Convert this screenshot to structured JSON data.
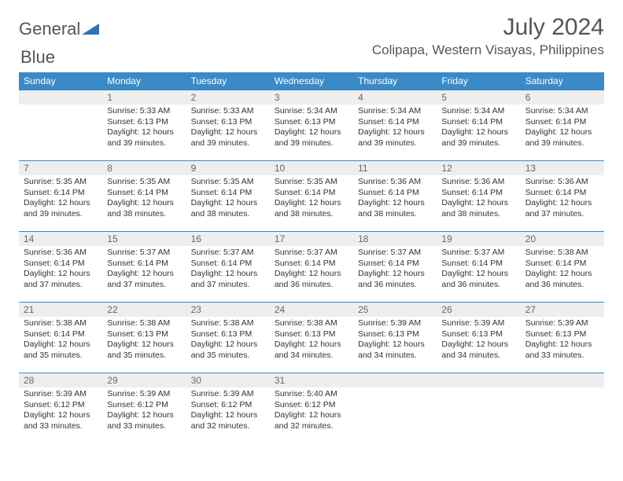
{
  "logo": {
    "text1": "General",
    "text2": "Blue"
  },
  "title": "July 2024",
  "location": "Colipapa, Western Visayas, Philippines",
  "colors": {
    "header_bg": "#3a8ac8",
    "header_text": "#ffffff",
    "daynum_bg": "#eeeeee",
    "row_divider": "#3a8ac8",
    "body_text": "#333333",
    "title_text": "#555555"
  },
  "weekdays": [
    "Sunday",
    "Monday",
    "Tuesday",
    "Wednesday",
    "Thursday",
    "Friday",
    "Saturday"
  ],
  "weeks": [
    [
      {
        "day": "",
        "sunrise": "",
        "sunset": "",
        "daylight": ""
      },
      {
        "day": "1",
        "sunrise": "Sunrise: 5:33 AM",
        "sunset": "Sunset: 6:13 PM",
        "daylight": "Daylight: 12 hours and 39 minutes."
      },
      {
        "day": "2",
        "sunrise": "Sunrise: 5:33 AM",
        "sunset": "Sunset: 6:13 PM",
        "daylight": "Daylight: 12 hours and 39 minutes."
      },
      {
        "day": "3",
        "sunrise": "Sunrise: 5:34 AM",
        "sunset": "Sunset: 6:13 PM",
        "daylight": "Daylight: 12 hours and 39 minutes."
      },
      {
        "day": "4",
        "sunrise": "Sunrise: 5:34 AM",
        "sunset": "Sunset: 6:14 PM",
        "daylight": "Daylight: 12 hours and 39 minutes."
      },
      {
        "day": "5",
        "sunrise": "Sunrise: 5:34 AM",
        "sunset": "Sunset: 6:14 PM",
        "daylight": "Daylight: 12 hours and 39 minutes."
      },
      {
        "day": "6",
        "sunrise": "Sunrise: 5:34 AM",
        "sunset": "Sunset: 6:14 PM",
        "daylight": "Daylight: 12 hours and 39 minutes."
      }
    ],
    [
      {
        "day": "7",
        "sunrise": "Sunrise: 5:35 AM",
        "sunset": "Sunset: 6:14 PM",
        "daylight": "Daylight: 12 hours and 39 minutes."
      },
      {
        "day": "8",
        "sunrise": "Sunrise: 5:35 AM",
        "sunset": "Sunset: 6:14 PM",
        "daylight": "Daylight: 12 hours and 38 minutes."
      },
      {
        "day": "9",
        "sunrise": "Sunrise: 5:35 AM",
        "sunset": "Sunset: 6:14 PM",
        "daylight": "Daylight: 12 hours and 38 minutes."
      },
      {
        "day": "10",
        "sunrise": "Sunrise: 5:35 AM",
        "sunset": "Sunset: 6:14 PM",
        "daylight": "Daylight: 12 hours and 38 minutes."
      },
      {
        "day": "11",
        "sunrise": "Sunrise: 5:36 AM",
        "sunset": "Sunset: 6:14 PM",
        "daylight": "Daylight: 12 hours and 38 minutes."
      },
      {
        "day": "12",
        "sunrise": "Sunrise: 5:36 AM",
        "sunset": "Sunset: 6:14 PM",
        "daylight": "Daylight: 12 hours and 38 minutes."
      },
      {
        "day": "13",
        "sunrise": "Sunrise: 5:36 AM",
        "sunset": "Sunset: 6:14 PM",
        "daylight": "Daylight: 12 hours and 37 minutes."
      }
    ],
    [
      {
        "day": "14",
        "sunrise": "Sunrise: 5:36 AM",
        "sunset": "Sunset: 6:14 PM",
        "daylight": "Daylight: 12 hours and 37 minutes."
      },
      {
        "day": "15",
        "sunrise": "Sunrise: 5:37 AM",
        "sunset": "Sunset: 6:14 PM",
        "daylight": "Daylight: 12 hours and 37 minutes."
      },
      {
        "day": "16",
        "sunrise": "Sunrise: 5:37 AM",
        "sunset": "Sunset: 6:14 PM",
        "daylight": "Daylight: 12 hours and 37 minutes."
      },
      {
        "day": "17",
        "sunrise": "Sunrise: 5:37 AM",
        "sunset": "Sunset: 6:14 PM",
        "daylight": "Daylight: 12 hours and 36 minutes."
      },
      {
        "day": "18",
        "sunrise": "Sunrise: 5:37 AM",
        "sunset": "Sunset: 6:14 PM",
        "daylight": "Daylight: 12 hours and 36 minutes."
      },
      {
        "day": "19",
        "sunrise": "Sunrise: 5:37 AM",
        "sunset": "Sunset: 6:14 PM",
        "daylight": "Daylight: 12 hours and 36 minutes."
      },
      {
        "day": "20",
        "sunrise": "Sunrise: 5:38 AM",
        "sunset": "Sunset: 6:14 PM",
        "daylight": "Daylight: 12 hours and 36 minutes."
      }
    ],
    [
      {
        "day": "21",
        "sunrise": "Sunrise: 5:38 AM",
        "sunset": "Sunset: 6:14 PM",
        "daylight": "Daylight: 12 hours and 35 minutes."
      },
      {
        "day": "22",
        "sunrise": "Sunrise: 5:38 AM",
        "sunset": "Sunset: 6:13 PM",
        "daylight": "Daylight: 12 hours and 35 minutes."
      },
      {
        "day": "23",
        "sunrise": "Sunrise: 5:38 AM",
        "sunset": "Sunset: 6:13 PM",
        "daylight": "Daylight: 12 hours and 35 minutes."
      },
      {
        "day": "24",
        "sunrise": "Sunrise: 5:38 AM",
        "sunset": "Sunset: 6:13 PM",
        "daylight": "Daylight: 12 hours and 34 minutes."
      },
      {
        "day": "25",
        "sunrise": "Sunrise: 5:39 AM",
        "sunset": "Sunset: 6:13 PM",
        "daylight": "Daylight: 12 hours and 34 minutes."
      },
      {
        "day": "26",
        "sunrise": "Sunrise: 5:39 AM",
        "sunset": "Sunset: 6:13 PM",
        "daylight": "Daylight: 12 hours and 34 minutes."
      },
      {
        "day": "27",
        "sunrise": "Sunrise: 5:39 AM",
        "sunset": "Sunset: 6:13 PM",
        "daylight": "Daylight: 12 hours and 33 minutes."
      }
    ],
    [
      {
        "day": "28",
        "sunrise": "Sunrise: 5:39 AM",
        "sunset": "Sunset: 6:12 PM",
        "daylight": "Daylight: 12 hours and 33 minutes."
      },
      {
        "day": "29",
        "sunrise": "Sunrise: 5:39 AM",
        "sunset": "Sunset: 6:12 PM",
        "daylight": "Daylight: 12 hours and 33 minutes."
      },
      {
        "day": "30",
        "sunrise": "Sunrise: 5:39 AM",
        "sunset": "Sunset: 6:12 PM",
        "daylight": "Daylight: 12 hours and 32 minutes."
      },
      {
        "day": "31",
        "sunrise": "Sunrise: 5:40 AM",
        "sunset": "Sunset: 6:12 PM",
        "daylight": "Daylight: 12 hours and 32 minutes."
      },
      {
        "day": "",
        "sunrise": "",
        "sunset": "",
        "daylight": ""
      },
      {
        "day": "",
        "sunrise": "",
        "sunset": "",
        "daylight": ""
      },
      {
        "day": "",
        "sunrise": "",
        "sunset": "",
        "daylight": ""
      }
    ]
  ]
}
